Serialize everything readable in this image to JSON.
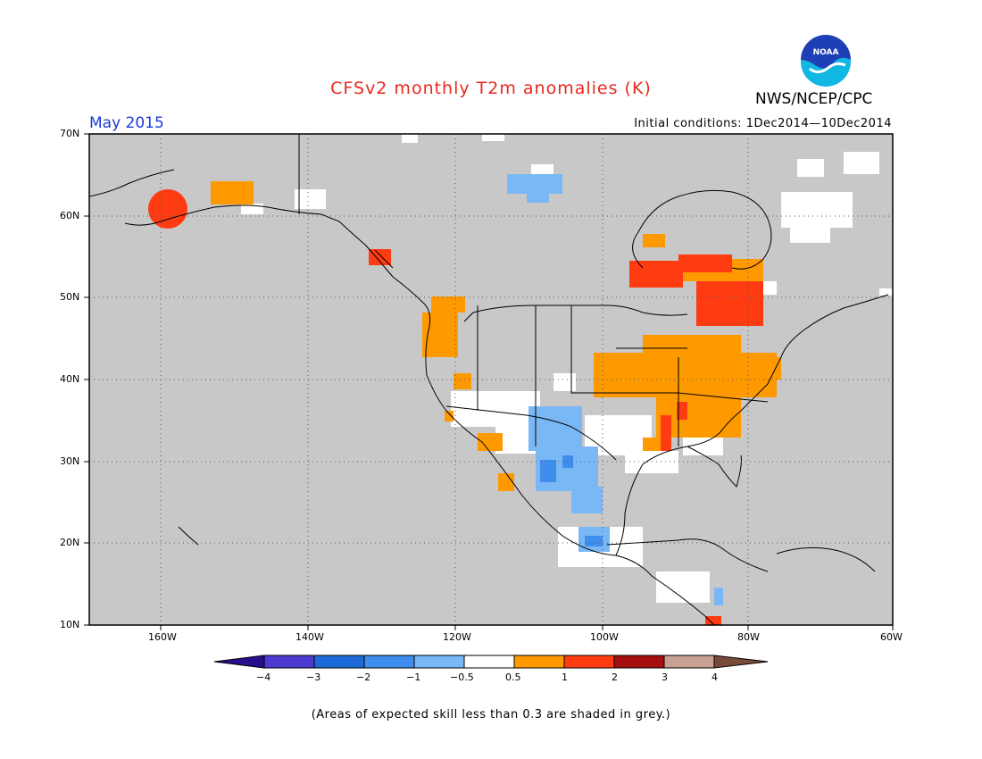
{
  "header": {
    "title": "CFSv2 monthly T2m anomalies (K)",
    "org": "NWS/NCEP/CPC",
    "logo_text": "NOAA",
    "month": "May 2015",
    "init_conditions": "Initial conditions: 1Dec2014—10Dec2014"
  },
  "map": {
    "lat_labels": [
      "70N",
      "60N",
      "50N",
      "40N",
      "30N",
      "20N",
      "10N"
    ],
    "lon_labels": [
      "160W",
      "140W",
      "120W",
      "100W",
      "80W",
      "60W"
    ],
    "background_color": "#c8c8c8"
  },
  "legend": {
    "tick_labels": [
      "−4",
      "−3",
      "−2",
      "−1",
      "−0.5",
      "0.5",
      "1",
      "2",
      "3",
      "4"
    ],
    "colors": [
      "#2a0f8c",
      "#4d3ad0",
      "#1e6ad8",
      "#3f8eed",
      "#7ab8f5",
      "#ffffff",
      "#ff9900",
      "#ff3b12",
      "#a50f0f",
      "#c8a193",
      "#7a4a3a"
    ]
  },
  "footnote": "(Areas of expected skill less than 0.3 are shaded in grey.)"
}
